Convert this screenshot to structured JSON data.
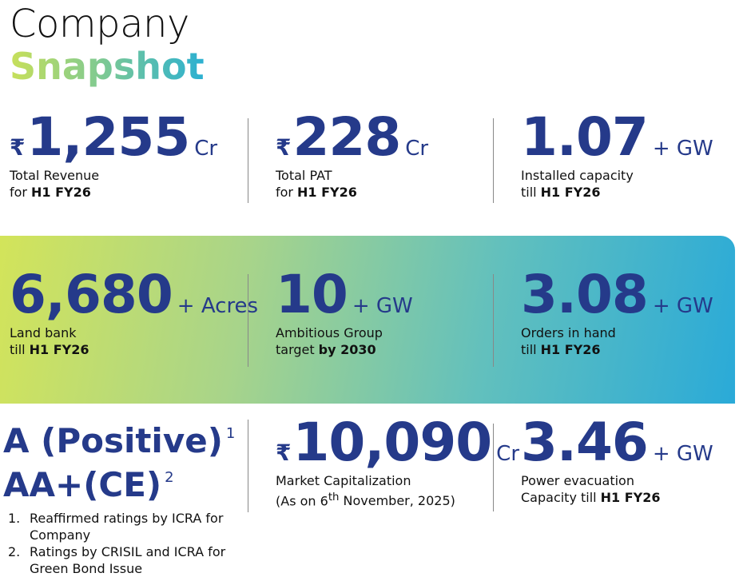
{
  "title": {
    "line1": "Company",
    "line2": "Snapshot"
  },
  "metrics": [
    {
      "currency": "₹",
      "value": "1,255",
      "unit": "Cr",
      "label": "Total Revenue",
      "sub": "for",
      "sub_bold": "H1 FY26"
    },
    {
      "currency": "₹",
      "value": "228",
      "unit": "Cr",
      "label": "Total PAT",
      "sub": "for",
      "sub_bold": "H1 FY26"
    },
    {
      "value": "1.07",
      "unit": "+ GW",
      "label": "Installed capacity",
      "sub": "till",
      "sub_bold": "H1 FY26"
    },
    {
      "value": "6,680",
      "unit": "+ Acres",
      "label": "Land bank",
      "sub": "till",
      "sub_bold": "H1 FY26"
    },
    {
      "value": "10",
      "unit": "+ GW",
      "label": "Ambitious Group",
      "sub": "target",
      "sub_bold": "by 2030"
    },
    {
      "value": "3.08",
      "unit": "+ GW",
      "label": "Orders in hand",
      "sub": "till",
      "sub_bold": "H1 FY26"
    },
    {
      "currency": "₹",
      "value": "10,090",
      "unit": "Cr",
      "label": "Market Capitalization",
      "note_before": "(As on 6",
      "note_sup": "th",
      "note_after": "November, 2025)"
    },
    {
      "value": "3.46",
      "unit": "+ GW",
      "label": "Power evacuation",
      "sub": "Capacity till",
      "sub_bold": "H1 FY26"
    }
  ],
  "ratings": {
    "items": [
      {
        "text": "A (Positive)",
        "sup": "1"
      },
      {
        "text": "AA+(CE)",
        "sup": "2"
      }
    ],
    "notes": [
      {
        "marker": "1.",
        "text": "Reaffirmed ratings by ICRA for Company"
      },
      {
        "marker": "2.",
        "text": "Ratings by CRISIL and ICRA for Green Bond Issue"
      }
    ]
  }
}
